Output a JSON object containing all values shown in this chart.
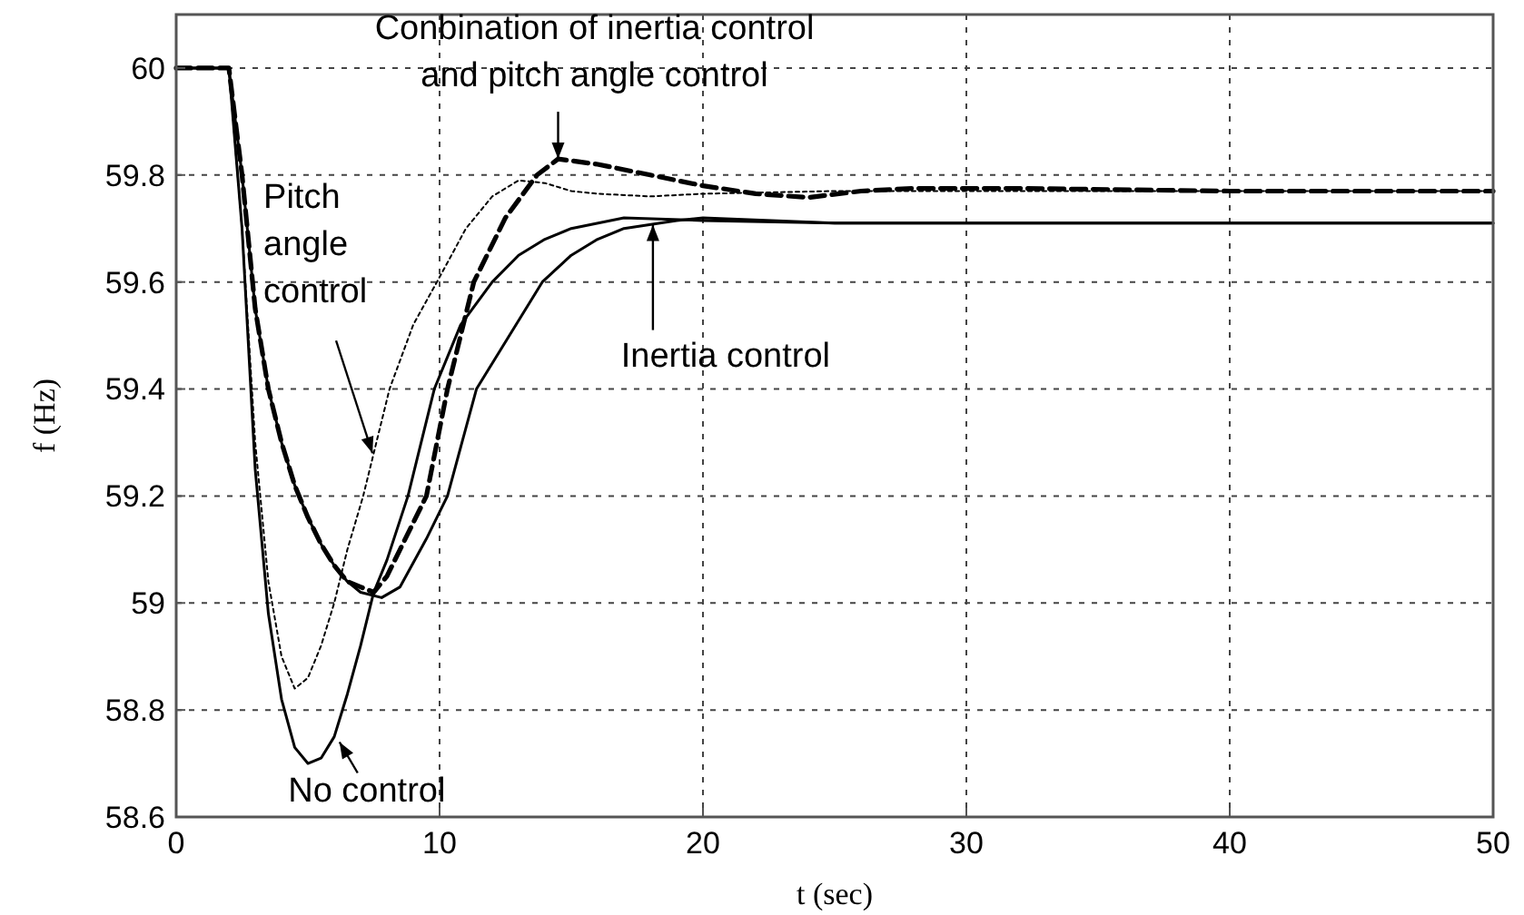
{
  "chart_data": {
    "type": "line",
    "xlabel": "t (sec)",
    "ylabel": "f (Hz)",
    "xlim": [
      0,
      50
    ],
    "ylim": [
      58.6,
      60.1
    ],
    "xticks": [
      0,
      10,
      20,
      30,
      40,
      50
    ],
    "yticks": [
      58.6,
      58.8,
      59,
      59.2,
      59.4,
      59.6,
      59.8,
      60
    ],
    "grid": true,
    "series": [
      {
        "color": "#000000",
        "line_style": "solid",
        "x": [
          0,
          2,
          2.5,
          3,
          3.5,
          4,
          4.5,
          5,
          5.5,
          6,
          6.5,
          7,
          7.5,
          8,
          8.8,
          9.8,
          10.8,
          12,
          13,
          14,
          15,
          17,
          20,
          25,
          50
        ],
        "values": [
          60,
          60,
          59.7,
          59.25,
          58.98,
          58.82,
          58.73,
          58.7,
          58.71,
          58.75,
          58.83,
          58.92,
          59.02,
          59.08,
          59.2,
          59.4,
          59.52,
          59.6,
          59.65,
          59.68,
          59.7,
          59.72,
          59.715,
          59.71,
          59.71
        ]
      },
      {
        "color": "#000000",
        "line_style": "dotted",
        "x": [
          0,
          2,
          2.5,
          3,
          3.5,
          4,
          4.5,
          5,
          5.5,
          6,
          6.5,
          7.1,
          8.1,
          9,
          9.9,
          11,
          12,
          13,
          14,
          15,
          16,
          18,
          20,
          25,
          50
        ],
        "values": [
          60,
          60,
          59.7,
          59.3,
          59.04,
          58.9,
          58.84,
          58.86,
          58.92,
          59,
          59.1,
          59.2,
          59.4,
          59.52,
          59.6,
          59.7,
          59.76,
          59.79,
          59.785,
          59.77,
          59.765,
          59.76,
          59.765,
          59.77,
          59.77
        ]
      },
      {
        "color": "#000000",
        "line_style": "dashed",
        "x": [
          0,
          2,
          2.5,
          3,
          3.5,
          4,
          4.5,
          5,
          5.5,
          6,
          6.5,
          7,
          7.5,
          8,
          8.5,
          9.5,
          10.3,
          11.3,
          12.5,
          13.7,
          14.5,
          16,
          18,
          20,
          22,
          24,
          26,
          28,
          32,
          40,
          50
        ],
        "values": [
          60,
          60,
          59.8,
          59.55,
          59.4,
          59.3,
          59.22,
          59.16,
          59.11,
          59.07,
          59.04,
          59.03,
          59.02,
          59.05,
          59.1,
          59.2,
          59.4,
          59.6,
          59.72,
          59.8,
          59.83,
          59.82,
          59.8,
          59.78,
          59.765,
          59.758,
          59.77,
          59.775,
          59.775,
          59.77,
          59.77
        ]
      },
      {
        "color": "#000000",
        "line_style": "solid",
        "x": [
          0,
          2,
          2.5,
          3,
          3.5,
          4,
          4.5,
          5,
          5.5,
          6,
          6.5,
          7,
          7.8,
          8.5,
          9.5,
          10.3,
          11.4,
          13.9,
          15,
          16,
          17,
          19,
          20,
          25,
          50
        ],
        "values": [
          60,
          60,
          59.8,
          59.55,
          59.4,
          59.3,
          59.22,
          59.16,
          59.11,
          59.07,
          59.04,
          59.02,
          59.01,
          59.03,
          59.12,
          59.2,
          59.4,
          59.6,
          59.65,
          59.68,
          59.7,
          59.715,
          59.72,
          59.71,
          59.71
        ]
      }
    ],
    "annotations": [
      {
        "text": "Conbination of inertia control\nand pitch angle control",
        "x": 14.5,
        "y": 59.83
      },
      {
        "text": "Pitch\nangle\ncontrol",
        "x": 7.45,
        "y": 59.28
      },
      {
        "text": "Inertia control",
        "x": 18.1,
        "y": 59.707
      },
      {
        "text": "No control",
        "x": 6.2,
        "y": 58.74
      }
    ]
  }
}
